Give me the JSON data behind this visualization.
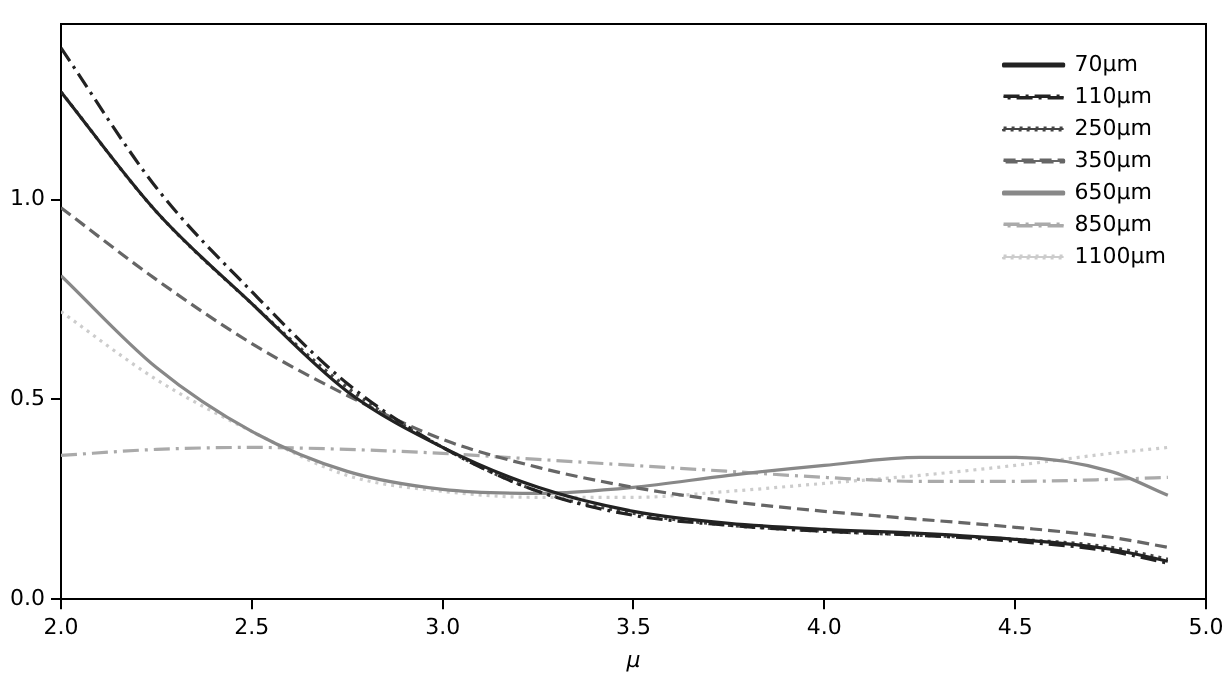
{
  "chart_data": {
    "type": "line",
    "xlabel": "μ",
    "x": [
      2.0,
      2.25,
      2.5,
      2.75,
      3.0,
      3.25,
      3.5,
      3.75,
      4.0,
      4.25,
      4.5,
      4.75,
      4.9
    ],
    "series": [
      {
        "name": "70μm",
        "color": "#222222",
        "line_style": "solid",
        "values": [
          1.27,
          0.97,
          0.74,
          0.52,
          0.38,
          0.28,
          0.22,
          0.19,
          0.175,
          0.165,
          0.15,
          0.125,
          0.095
        ]
      },
      {
        "name": "110μm",
        "color": "#222222",
        "line_style": "dashdot",
        "values": [
          1.38,
          1.03,
          0.77,
          0.54,
          0.38,
          0.27,
          0.21,
          0.185,
          0.17,
          0.16,
          0.145,
          0.12,
          0.09
        ]
      },
      {
        "name": "250μm",
        "color": "#444444",
        "line_style": "dotted",
        "values": [
          1.27,
          0.97,
          0.74,
          0.53,
          0.38,
          0.27,
          0.215,
          0.185,
          0.17,
          0.16,
          0.15,
          0.13,
          0.1
        ]
      },
      {
        "name": "350μm",
        "color": "#666666",
        "line_style": "dashed",
        "values": [
          0.98,
          0.8,
          0.64,
          0.51,
          0.4,
          0.33,
          0.28,
          0.245,
          0.22,
          0.2,
          0.18,
          0.155,
          0.13
        ]
      },
      {
        "name": "650μm",
        "color": "#888888",
        "line_style": "solid",
        "values": [
          0.81,
          0.58,
          0.42,
          0.32,
          0.275,
          0.265,
          0.28,
          0.31,
          0.335,
          0.355,
          0.355,
          0.32,
          0.26
        ]
      },
      {
        "name": "850μm",
        "color": "#aaaaaa",
        "line_style": "dashdot",
        "values": [
          0.36,
          0.375,
          0.38,
          0.375,
          0.365,
          0.35,
          0.335,
          0.32,
          0.305,
          0.295,
          0.295,
          0.3,
          0.305
        ]
      },
      {
        "name": "1100μm",
        "color": "#cccccc",
        "line_style": "dotted",
        "values": [
          0.72,
          0.55,
          0.42,
          0.31,
          0.27,
          0.255,
          0.255,
          0.27,
          0.29,
          0.31,
          0.335,
          0.365,
          0.38
        ]
      }
    ],
    "xlim": [
      2.0,
      5.0
    ],
    "xticks": [
      {
        "value": 2.0,
        "label": "2.0"
      },
      {
        "value": 2.5,
        "label": "2.5"
      },
      {
        "value": 3.0,
        "label": "3.0"
      },
      {
        "value": 3.5,
        "label": "3.5"
      },
      {
        "value": 4.0,
        "label": "4.0"
      },
      {
        "value": 4.5,
        "label": "4.5"
      },
      {
        "value": 5.0,
        "label": "5.0"
      }
    ],
    "ylim": [
      0,
      1.44
    ],
    "yticks": [
      {
        "value": 0,
        "label": "0.0"
      },
      {
        "value": 0.5,
        "label": "0.5"
      },
      {
        "value": 1.0,
        "label": "1.0"
      }
    ],
    "legend": "top right",
    "grid": false
  }
}
